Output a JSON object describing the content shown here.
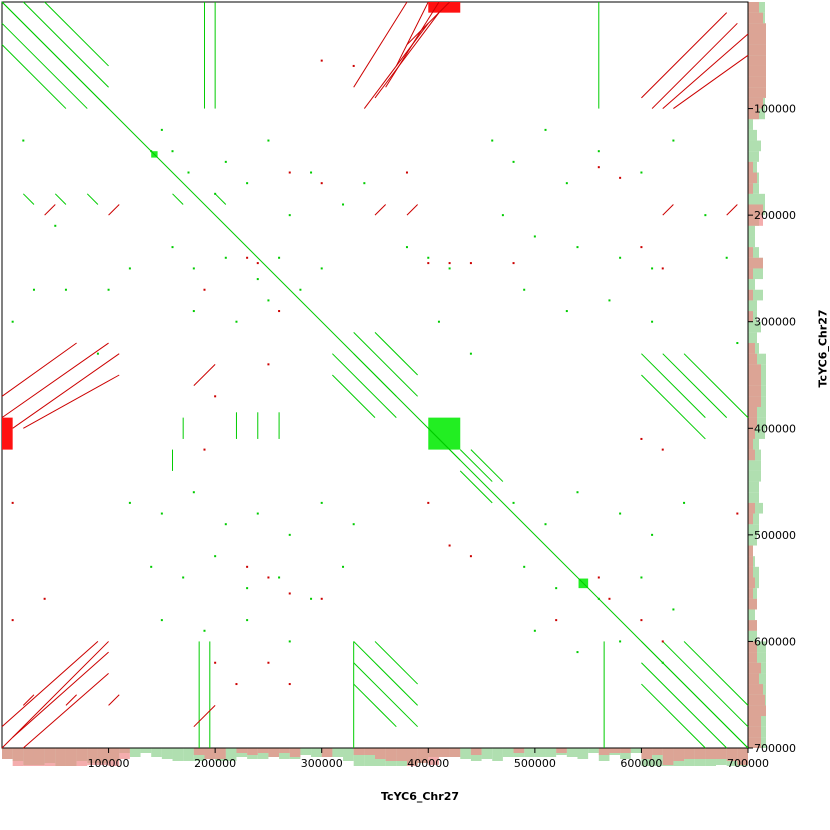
{
  "chart_data": {
    "type": "scatter",
    "title": "",
    "xlabel": "TcYC6_Chr27",
    "ylabel": "TcYC6_Chr27",
    "xlim": [
      0,
      700000
    ],
    "ylim": [
      0,
      700000
    ],
    "y_inverted": true,
    "x_ticks": [
      100000,
      200000,
      300000,
      400000,
      500000,
      600000,
      700000
    ],
    "y_ticks": [
      100000,
      200000,
      300000,
      400000,
      500000,
      600000,
      700000
    ],
    "x_tick_labels": [
      "100000",
      "200000",
      "300000",
      "400000",
      "500000",
      "600000",
      "700000"
    ],
    "y_tick_labels": [
      "100000",
      "200000",
      "300000",
      "400000",
      "500000",
      "600000",
      "700000"
    ],
    "grid": false,
    "colors": {
      "forward": "#00cc00",
      "reverse": "#cc0000",
      "block_forward": "#22ee22",
      "block_reverse": "#ff1111",
      "coverage_forward": "#8fd18f",
      "coverage_reverse": "#f08a8a"
    },
    "series": [
      {
        "name": "forward",
        "segments": [
          [
            0,
            0,
            700000,
            700000
          ],
          [
            0,
            0,
            100000,
            100000
          ],
          [
            20000,
            0,
            100000,
            80000
          ],
          [
            40000,
            0,
            100000,
            60000
          ],
          [
            0,
            20000,
            80000,
            100000
          ],
          [
            0,
            40000,
            60000,
            100000
          ],
          [
            600000,
            600000,
            700000,
            700000
          ],
          [
            620000,
            600000,
            700000,
            680000
          ],
          [
            640000,
            600000,
            700000,
            660000
          ],
          [
            600000,
            620000,
            680000,
            700000
          ],
          [
            600000,
            640000,
            660000,
            700000
          ],
          [
            330000,
            310000,
            390000,
            370000
          ],
          [
            350000,
            310000,
            390000,
            350000
          ],
          [
            330000,
            330000,
            370000,
            370000
          ],
          [
            310000,
            330000,
            370000,
            390000
          ],
          [
            310000,
            350000,
            350000,
            390000
          ],
          [
            330000,
            600000,
            390000,
            660000
          ],
          [
            350000,
            600000,
            390000,
            640000
          ],
          [
            330000,
            620000,
            390000,
            680000
          ],
          [
            330000,
            640000,
            370000,
            680000
          ],
          [
            600000,
            330000,
            660000,
            390000
          ],
          [
            620000,
            330000,
            680000,
            390000
          ],
          [
            600000,
            350000,
            660000,
            410000
          ],
          [
            640000,
            330000,
            700000,
            390000
          ],
          [
            400000,
            400000,
            430000,
            430000
          ],
          [
            430000,
            420000,
            460000,
            450000
          ],
          [
            430000,
            440000,
            460000,
            470000
          ],
          [
            440000,
            420000,
            470000,
            450000
          ],
          [
            20000,
            180000,
            30000,
            190000
          ],
          [
            50000,
            180000,
            60000,
            190000
          ],
          [
            80000,
            180000,
            90000,
            190000
          ],
          [
            160000,
            180000,
            170000,
            190000
          ],
          [
            200000,
            180000,
            210000,
            190000
          ],
          [
            160000,
            420000,
            160000,
            440000
          ],
          [
            170000,
            390000,
            170000,
            410000
          ],
          [
            220000,
            385000,
            220000,
            410000
          ],
          [
            240000,
            385000,
            240000,
            410000
          ],
          [
            260000,
            385000,
            260000,
            410000
          ],
          [
            190000,
            0,
            190000,
            100000
          ],
          [
            200000,
            0,
            200000,
            100000
          ],
          [
            185000,
            600000,
            185000,
            700000
          ],
          [
            195000,
            600000,
            195000,
            700000
          ],
          [
            330000,
            600000,
            330000,
            700000
          ],
          [
            560000,
            0,
            560000,
            100000
          ],
          [
            565000,
            600000,
            565000,
            700000
          ]
        ],
        "points": [
          [
            140000,
            140000
          ],
          [
            150000,
            120000
          ],
          [
            160000,
            140000
          ],
          [
            175000,
            160000
          ],
          [
            200000,
            180000
          ],
          [
            210000,
            150000
          ],
          [
            230000,
            170000
          ],
          [
            250000,
            130000
          ],
          [
            270000,
            200000
          ],
          [
            290000,
            160000
          ],
          [
            320000,
            190000
          ],
          [
            340000,
            170000
          ],
          [
            160000,
            230000
          ],
          [
            180000,
            250000
          ],
          [
            210000,
            240000
          ],
          [
            240000,
            260000
          ],
          [
            260000,
            240000
          ],
          [
            280000,
            270000
          ],
          [
            300000,
            250000
          ],
          [
            180000,
            290000
          ],
          [
            220000,
            300000
          ],
          [
            250000,
            280000
          ],
          [
            120000,
            250000
          ],
          [
            100000,
            270000
          ],
          [
            60000,
            270000
          ],
          [
            30000,
            270000
          ],
          [
            460000,
            130000
          ],
          [
            480000,
            150000
          ],
          [
            510000,
            120000
          ],
          [
            530000,
            170000
          ],
          [
            560000,
            140000
          ],
          [
            600000,
            160000
          ],
          [
            630000,
            130000
          ],
          [
            470000,
            200000
          ],
          [
            500000,
            220000
          ],
          [
            540000,
            230000
          ],
          [
            580000,
            240000
          ],
          [
            610000,
            250000
          ],
          [
            490000,
            270000
          ],
          [
            530000,
            290000
          ],
          [
            570000,
            280000
          ],
          [
            610000,
            300000
          ],
          [
            120000,
            470000
          ],
          [
            150000,
            480000
          ],
          [
            180000,
            460000
          ],
          [
            210000,
            490000
          ],
          [
            240000,
            480000
          ],
          [
            270000,
            500000
          ],
          [
            300000,
            470000
          ],
          [
            330000,
            490000
          ],
          [
            140000,
            530000
          ],
          [
            170000,
            540000
          ],
          [
            200000,
            520000
          ],
          [
            230000,
            550000
          ],
          [
            260000,
            540000
          ],
          [
            290000,
            560000
          ],
          [
            320000,
            530000
          ],
          [
            150000,
            580000
          ],
          [
            190000,
            590000
          ],
          [
            230000,
            580000
          ],
          [
            270000,
            600000
          ],
          [
            480000,
            470000
          ],
          [
            510000,
            490000
          ],
          [
            540000,
            460000
          ],
          [
            580000,
            480000
          ],
          [
            610000,
            500000
          ],
          [
            640000,
            470000
          ],
          [
            490000,
            530000
          ],
          [
            520000,
            550000
          ],
          [
            560000,
            560000
          ],
          [
            600000,
            540000
          ],
          [
            630000,
            570000
          ],
          [
            500000,
            590000
          ],
          [
            540000,
            610000
          ],
          [
            580000,
            600000
          ],
          [
            620000,
            620000
          ],
          [
            20000,
            130000
          ],
          [
            50000,
            210000
          ],
          [
            90000,
            330000
          ],
          [
            10000,
            300000
          ],
          [
            380000,
            230000
          ],
          [
            400000,
            240000
          ],
          [
            420000,
            250000
          ],
          [
            410000,
            300000
          ],
          [
            440000,
            330000
          ],
          [
            660000,
            200000
          ],
          [
            680000,
            240000
          ],
          [
            690000,
            320000
          ]
        ]
      },
      {
        "name": "reverse",
        "segments": [
          [
            340000,
            100000,
            400000,
            20000
          ],
          [
            350000,
            90000,
            410000,
            10000
          ],
          [
            360000,
            80000,
            410000,
            0
          ],
          [
            370000,
            60000,
            400000,
            0
          ],
          [
            330000,
            80000,
            380000,
            0
          ],
          [
            620000,
            100000,
            700000,
            30000
          ],
          [
            600000,
            90000,
            680000,
            10000
          ],
          [
            630000,
            100000,
            700000,
            50000
          ],
          [
            610000,
            100000,
            690000,
            20000
          ],
          [
            0,
            390000,
            100000,
            320000
          ],
          [
            10000,
            400000,
            110000,
            330000
          ],
          [
            20000,
            400000,
            110000,
            350000
          ],
          [
            0,
            370000,
            70000,
            320000
          ],
          [
            0,
            700000,
            100000,
            600000
          ],
          [
            10000,
            690000,
            100000,
            610000
          ],
          [
            0,
            680000,
            90000,
            600000
          ],
          [
            20000,
            700000,
            100000,
            630000
          ],
          [
            380000,
            40000,
            420000,
            0
          ],
          [
            180000,
            360000,
            200000,
            340000
          ],
          [
            40000,
            200000,
            50000,
            190000
          ],
          [
            100000,
            200000,
            110000,
            190000
          ],
          [
            620000,
            200000,
            630000,
            190000
          ],
          [
            680000,
            200000,
            690000,
            190000
          ],
          [
            350000,
            200000,
            360000,
            190000
          ],
          [
            380000,
            200000,
            390000,
            190000
          ],
          [
            180000,
            680000,
            200000,
            660000
          ],
          [
            20000,
            660000,
            30000,
            650000
          ],
          [
            60000,
            660000,
            70000,
            650000
          ],
          [
            100000,
            660000,
            110000,
            650000
          ]
        ],
        "points": [
          [
            300000,
            55000
          ],
          [
            330000,
            60000
          ],
          [
            270000,
            160000
          ],
          [
            300000,
            170000
          ],
          [
            380000,
            160000
          ],
          [
            230000,
            240000
          ],
          [
            240000,
            245000
          ],
          [
            400000,
            245000
          ],
          [
            420000,
            245000
          ],
          [
            440000,
            245000
          ],
          [
            480000,
            245000
          ],
          [
            190000,
            270000
          ],
          [
            260000,
            290000
          ],
          [
            560000,
            155000
          ],
          [
            580000,
            165000
          ],
          [
            600000,
            230000
          ],
          [
            620000,
            250000
          ],
          [
            250000,
            340000
          ],
          [
            200000,
            370000
          ],
          [
            600000,
            410000
          ],
          [
            620000,
            420000
          ],
          [
            190000,
            420000
          ],
          [
            420000,
            510000
          ],
          [
            440000,
            520000
          ],
          [
            560000,
            540000
          ],
          [
            570000,
            560000
          ],
          [
            600000,
            580000
          ],
          [
            620000,
            600000
          ],
          [
            230000,
            530000
          ],
          [
            250000,
            540000
          ],
          [
            270000,
            555000
          ],
          [
            300000,
            560000
          ],
          [
            200000,
            620000
          ],
          [
            220000,
            640000
          ],
          [
            250000,
            620000
          ],
          [
            270000,
            640000
          ],
          [
            520000,
            580000
          ],
          [
            400000,
            470000
          ],
          [
            10000,
            470000
          ],
          [
            690000,
            480000
          ],
          [
            10000,
            580000
          ],
          [
            40000,
            560000
          ]
        ]
      }
    ],
    "blocks": [
      {
        "series": "reverse",
        "x": [
          0,
          10000
        ],
        "y": [
          390000,
          420000
        ]
      },
      {
        "series": "reverse",
        "x": [
          400000,
          430000
        ],
        "y": [
          0,
          10000
        ]
      },
      {
        "series": "forward",
        "x": [
          400000,
          430000
        ],
        "y": [
          390000,
          420000
        ]
      },
      {
        "series": "forward",
        "x": [
          140000,
          146000
        ],
        "y": [
          140000,
          146000
        ]
      },
      {
        "series": "forward",
        "x": [
          541000,
          550000
        ],
        "y": [
          541000,
          550000
        ]
      }
    ]
  }
}
